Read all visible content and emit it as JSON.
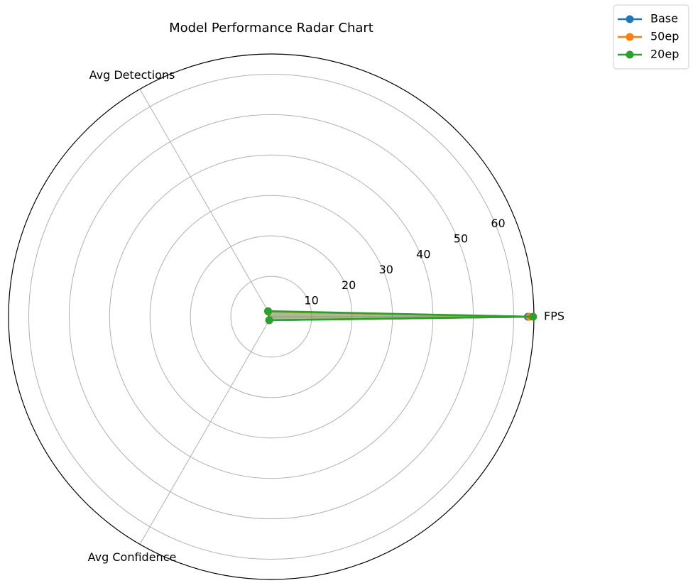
{
  "chart_data": {
    "type": "radar",
    "title": "Model Performance Radar Chart",
    "axes": [
      "FPS",
      "Avg Detections",
      "Avg Confidence"
    ],
    "radial_ticks": [
      10,
      20,
      30,
      40,
      50,
      60
    ],
    "rlim": [
      0,
      65
    ],
    "grid": true,
    "legend_position": "top-right",
    "series": [
      {
        "name": "Base",
        "values": [
          63.5,
          1.5,
          1.0
        ],
        "color": "#1f77b4"
      },
      {
        "name": "50ep",
        "values": [
          63.9,
          1.5,
          1.0
        ],
        "color": "#ff7f0e"
      },
      {
        "name": "20ep",
        "values": [
          64.8,
          1.6,
          1.0
        ],
        "color": "#2ca02c"
      }
    ]
  }
}
